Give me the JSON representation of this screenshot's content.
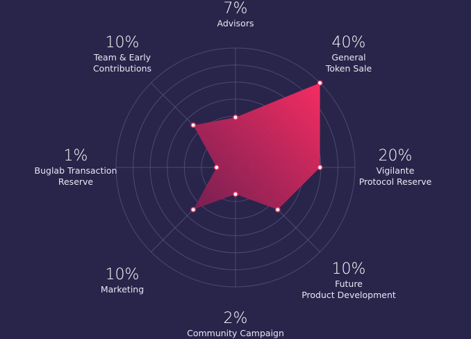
{
  "chart_data": {
    "type": "radar",
    "title": "",
    "rlim": [
      0,
      40
    ],
    "rings": 7,
    "grid": true,
    "categories": [
      "Advisors",
      "General Token Sale",
      "Vigilante Protocol Reserve",
      "Future Product Development",
      "Community Campaign",
      "Marketing",
      "Buglab Transaction Reserve",
      "Team & Early Contributions"
    ],
    "label_lines": [
      [
        "Advisors"
      ],
      [
        "General",
        "Token Sale"
      ],
      [
        "Vigilante",
        "Protocol Reserve"
      ],
      [
        "Future",
        "Product Development"
      ],
      [
        "Community Campaign"
      ],
      [
        "Marketing"
      ],
      [
        "Buglab Transaction",
        "Reserve"
      ],
      [
        "Team & Early",
        "Contributions"
      ]
    ],
    "percent_labels": [
      "7%",
      "40%",
      "20%",
      "10%",
      "2%",
      "10%",
      "1%",
      "10%"
    ],
    "values": [
      7,
      40,
      20,
      10,
      2,
      10,
      1,
      10
    ],
    "colors": {
      "background": "#29244a",
      "fill_start": "#ff2d63",
      "fill_end": "#7a1f52",
      "grid": "#5a5680",
      "marker_stroke": "#e8305f",
      "marker_fill": "#ffffff"
    }
  }
}
